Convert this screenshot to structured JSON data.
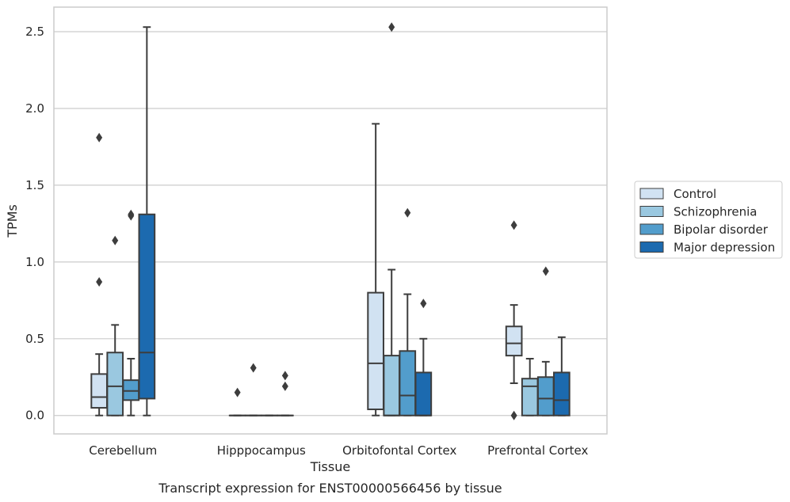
{
  "chart_data": {
    "type": "box",
    "title": "",
    "caption": "Transcript expression for ENST00000566456 by tissue",
    "xlabel": "Tissue",
    "ylabel": "TPMs",
    "ylim": [
      -0.12,
      2.66
    ],
    "yticks": [
      0.0,
      0.5,
      1.0,
      1.5,
      2.0,
      2.5
    ],
    "ytick_labels": [
      "0.0",
      "0.5",
      "1.0",
      "1.5",
      "2.0",
      "2.5"
    ],
    "grid": true,
    "legend_position": "right",
    "categories": [
      "Cerebellum",
      "Hipppocampus",
      "Orbitofontal Cortex",
      "Prefrontal Cortex"
    ],
    "series": [
      {
        "name": "Control",
        "color": "#d1e2f2",
        "boxes": [
          {
            "whisker_low": 0.0,
            "q1": 0.05,
            "median": 0.12,
            "q3": 0.27,
            "whisker_high": 0.4,
            "outliers": [
              0.87,
              1.81
            ]
          },
          {
            "whisker_low": 0.0,
            "q1": 0.0,
            "median": 0.0,
            "q3": 0.0,
            "whisker_high": 0.0,
            "outliers": [
              0.15
            ]
          },
          {
            "whisker_low": 0.0,
            "q1": 0.04,
            "median": 0.34,
            "q3": 0.8,
            "whisker_high": 1.9,
            "outliers": []
          },
          {
            "whisker_low": 0.21,
            "q1": 0.39,
            "median": 0.47,
            "q3": 0.58,
            "whisker_high": 0.72,
            "outliers": [
              0.0,
              1.24
            ]
          }
        ]
      },
      {
        "name": "Schizophrenia",
        "color": "#9ac8e0",
        "boxes": [
          {
            "whisker_low": 0.0,
            "q1": 0.0,
            "median": 0.19,
            "q3": 0.41,
            "whisker_high": 0.59,
            "outliers": [
              1.14
            ]
          },
          {
            "whisker_low": 0.0,
            "q1": 0.0,
            "median": 0.0,
            "q3": 0.0,
            "whisker_high": 0.0,
            "outliers": [
              0.31
            ]
          },
          {
            "whisker_low": 0.0,
            "q1": 0.0,
            "median": 0.0,
            "q3": 0.39,
            "whisker_high": 0.95,
            "outliers": [
              2.53
            ]
          },
          {
            "whisker_low": 0.0,
            "q1": 0.0,
            "median": 0.19,
            "q3": 0.24,
            "whisker_high": 0.37,
            "outliers": []
          }
        ]
      },
      {
        "name": "Bipolar disorder",
        "color": "#529dcc",
        "boxes": [
          {
            "whisker_low": 0.0,
            "q1": 0.1,
            "median": 0.16,
            "q3": 0.23,
            "whisker_high": 0.37,
            "outliers": [
              1.3,
              1.31
            ]
          },
          {
            "whisker_low": 0.0,
            "q1": 0.0,
            "median": 0.0,
            "q3": 0.0,
            "whisker_high": 0.0,
            "outliers": []
          },
          {
            "whisker_low": 0.0,
            "q1": 0.0,
            "median": 0.13,
            "q3": 0.42,
            "whisker_high": 0.79,
            "outliers": [
              1.32
            ]
          },
          {
            "whisker_low": 0.0,
            "q1": 0.0,
            "median": 0.11,
            "q3": 0.25,
            "whisker_high": 0.35,
            "outliers": [
              0.94
            ]
          }
        ]
      },
      {
        "name": "Major depression",
        "color": "#1c6aaf",
        "boxes": [
          {
            "whisker_low": 0.0,
            "q1": 0.11,
            "median": 0.41,
            "q3": 1.31,
            "whisker_high": 2.53,
            "outliers": []
          },
          {
            "whisker_low": 0.0,
            "q1": 0.0,
            "median": 0.0,
            "q3": 0.0,
            "whisker_high": 0.0,
            "outliers": [
              0.19,
              0.26
            ]
          },
          {
            "whisker_low": 0.0,
            "q1": 0.0,
            "median": 0.0,
            "q3": 0.28,
            "whisker_high": 0.5,
            "outliers": [
              0.73
            ]
          },
          {
            "whisker_low": 0.0,
            "q1": 0.0,
            "median": 0.1,
            "q3": 0.28,
            "whisker_high": 0.51,
            "outliers": []
          }
        ]
      }
    ]
  }
}
